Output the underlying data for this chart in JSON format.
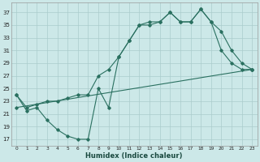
{
  "xlabel": "Humidex (Indice chaleur)",
  "bg_color": "#cce8e8",
  "grid_color": "#aacccc",
  "line_color": "#2a7060",
  "xlim": [
    -0.5,
    23.5
  ],
  "ylim": [
    16,
    38.5
  ],
  "yticks": [
    17,
    19,
    21,
    23,
    25,
    27,
    29,
    31,
    33,
    35,
    37
  ],
  "xticks": [
    0,
    1,
    2,
    3,
    4,
    5,
    6,
    7,
    8,
    9,
    10,
    11,
    12,
    13,
    14,
    15,
    16,
    17,
    18,
    19,
    20,
    21,
    22,
    23
  ],
  "curve1_x": [
    0,
    1,
    2,
    3,
    4,
    5,
    6,
    7,
    8,
    9,
    10,
    11,
    12,
    13,
    14,
    15,
    16,
    17,
    18,
    19,
    20,
    21,
    22,
    23
  ],
  "curve1_y": [
    24,
    21.5,
    22,
    20,
    18.5,
    17.5,
    17,
    17,
    25,
    22,
    30,
    32.5,
    35,
    35.5,
    35.5,
    37,
    35.5,
    35.5,
    37.5,
    35.5,
    31,
    29,
    28,
    28
  ],
  "curve2_x": [
    0,
    1,
    2,
    3,
    4,
    5,
    6,
    7,
    8,
    9,
    10,
    11,
    12,
    13,
    14,
    15,
    16,
    17,
    18,
    19,
    20,
    21,
    22,
    23
  ],
  "curve2_y": [
    24,
    22,
    22.5,
    23,
    23,
    23.5,
    24,
    24,
    27,
    28,
    30,
    32.5,
    35,
    35,
    35.5,
    37,
    35.5,
    35.5,
    37.5,
    35.5,
    34,
    31,
    29,
    28
  ],
  "curve3_x": [
    0,
    1,
    2,
    3,
    4,
    5,
    6,
    7,
    8,
    9,
    10,
    11,
    12,
    13,
    14,
    15,
    16,
    17,
    18,
    19,
    20,
    21,
    22,
    23
  ],
  "curve3_y": [
    22,
    22.26,
    22.52,
    22.78,
    23.04,
    23.3,
    23.57,
    23.83,
    24.09,
    24.35,
    24.61,
    24.87,
    25.13,
    25.39,
    25.65,
    25.91,
    26.17,
    26.43,
    26.7,
    26.96,
    27.22,
    27.48,
    27.74,
    28
  ],
  "xlabel_fontsize": 6,
  "xlabel_color": "#1a4a40",
  "xtick_fontsize": 4.2,
  "ytick_fontsize": 5.0,
  "lw": 0.8,
  "ms": 1.8
}
